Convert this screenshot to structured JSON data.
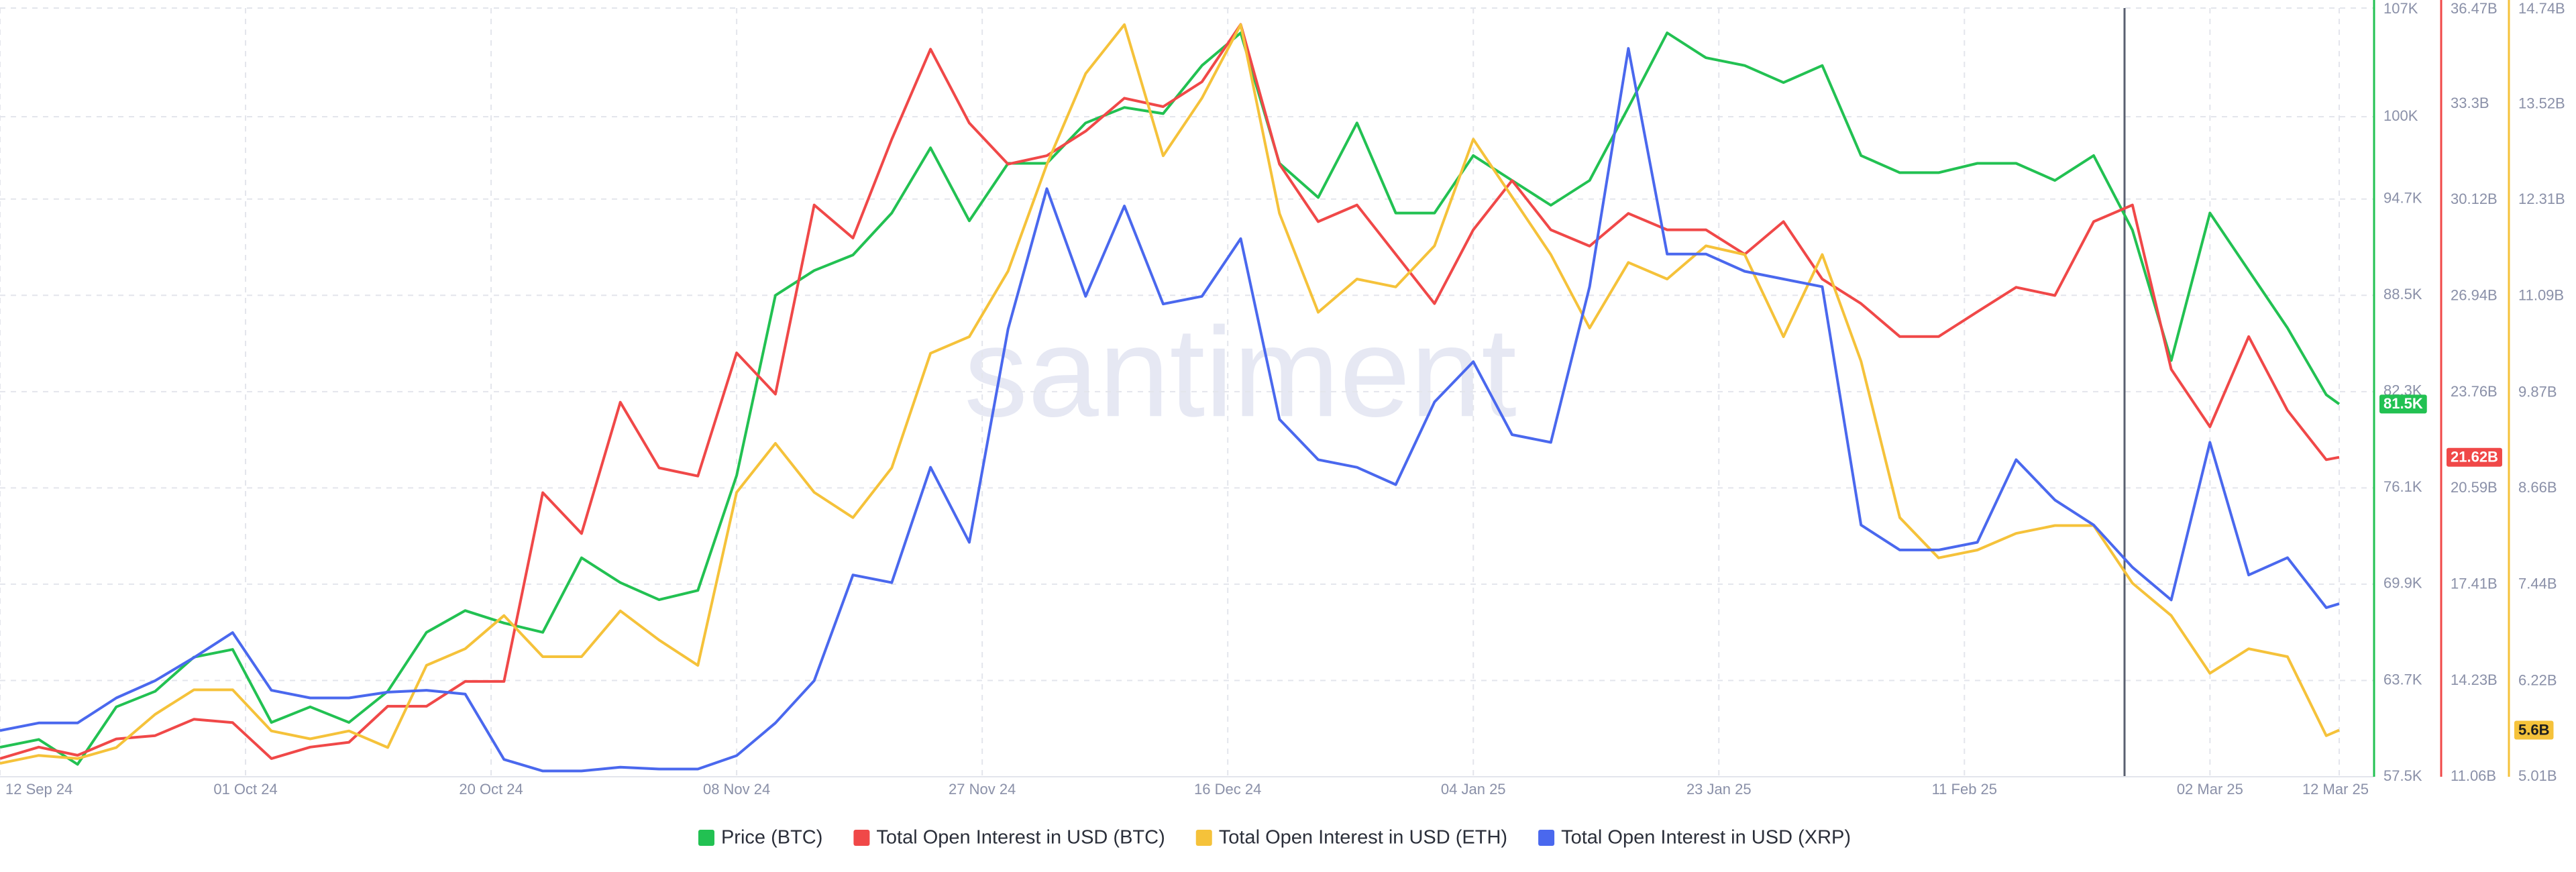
{
  "chart_data": {
    "type": "line",
    "watermark": "santiment",
    "x": [
      "12 Sep 24",
      "15 Sep 24",
      "18 Sep 24",
      "21 Sep 24",
      "24 Sep 24",
      "27 Sep 24",
      "30 Sep 24",
      "03 Oct 24",
      "06 Oct 24",
      "09 Oct 24",
      "12 Oct 24",
      "15 Oct 24",
      "18 Oct 24",
      "21 Oct 24",
      "24 Oct 24",
      "27 Oct 24",
      "30 Oct 24",
      "02 Nov 24",
      "05 Nov 24",
      "08 Nov 24",
      "11 Nov 24",
      "14 Nov 24",
      "17 Nov 24",
      "20 Nov 24",
      "23 Nov 24",
      "26 Nov 24",
      "29 Nov 24",
      "02 Dec 24",
      "05 Dec 24",
      "08 Dec 24",
      "11 Dec 24",
      "14 Dec 24",
      "17 Dec 24",
      "20 Dec 24",
      "23 Dec 24",
      "26 Dec 24",
      "29 Dec 24",
      "01 Jan 25",
      "04 Jan 25",
      "07 Jan 25",
      "10 Jan 25",
      "13 Jan 25",
      "16 Jan 25",
      "19 Jan 25",
      "22 Jan 25",
      "25 Jan 25",
      "28 Jan 25",
      "31 Jan 25",
      "03 Feb 25",
      "06 Feb 25",
      "09 Feb 25",
      "12 Feb 25",
      "15 Feb 25",
      "18 Feb 25",
      "21 Feb 25",
      "24 Feb 25",
      "27 Feb 25",
      "02 Mar 25",
      "05 Mar 25",
      "08 Mar 25",
      "11 Mar 25",
      "12 Mar 25"
    ],
    "xlim": [
      "12 Sep 24",
      "12 Mar 25"
    ],
    "xticks": [
      "12 Sep 24",
      "01 Oct 24",
      "20 Oct 24",
      "08 Nov 24",
      "27 Nov 24",
      "16 Dec 24",
      "04 Jan 25",
      "23 Jan 25",
      "11 Feb 25",
      "02 Mar 25",
      "12 Mar 25"
    ],
    "grid": true,
    "ylim": [
      57.5,
      107
    ],
    "yticks": [
      {
        "value": 57.5,
        "label": "57.5K"
      },
      {
        "value": 63.7,
        "label": "63.7K"
      },
      {
        "value": 69.9,
        "label": "69.9K"
      },
      {
        "value": 76.1,
        "label": "76.1K"
      },
      {
        "value": 82.3,
        "label": "82.3K"
      },
      {
        "value": 88.5,
        "label": "88.5K"
      },
      {
        "value": 94.7,
        "label": "94.7K"
      },
      {
        "value": 100,
        "label": "100K"
      },
      {
        "value": 107,
        "label": "107K"
      }
    ],
    "y2lim": [
      11.06,
      36.47
    ],
    "y2ticks": [
      {
        "value": 11.06,
        "label": "11.06B"
      },
      {
        "value": 14.23,
        "label": "14.23B"
      },
      {
        "value": 17.41,
        "label": "17.41B"
      },
      {
        "value": 20.59,
        "label": "20.59B"
      },
      {
        "value": 23.76,
        "label": "23.76B"
      },
      {
        "value": 26.94,
        "label": "26.94B"
      },
      {
        "value": 30.12,
        "label": "30.12B"
      },
      {
        "value": 33.3,
        "label": "33.3B"
      },
      {
        "value": 36.47,
        "label": "36.47B"
      }
    ],
    "y3lim": [
      5.01,
      14.74
    ],
    "y3ticks": [
      {
        "value": 5.01,
        "label": "5.01B"
      },
      {
        "value": 6.22,
        "label": "6.22B"
      },
      {
        "value": 7.44,
        "label": "7.44B"
      },
      {
        "value": 8.66,
        "label": "8.66B"
      },
      {
        "value": 9.87,
        "label": "9.87B"
      },
      {
        "value": 11.09,
        "label": "11.09B"
      },
      {
        "value": 12.31,
        "label": "12.31B"
      },
      {
        "value": 13.52,
        "label": "13.52B"
      },
      {
        "value": 14.74,
        "label": "14.74B"
      }
    ],
    "y4lim": [
      0.4,
      4.4
    ],
    "series": [
      {
        "name": "Price (BTC)",
        "color": "#22c152",
        "axis": "y",
        "last_label": "81.5K",
        "values": [
          59.4,
          59.9,
          58.3,
          62.0,
          63.0,
          65.2,
          65.7,
          61.0,
          62.0,
          61.0,
          63.0,
          66.8,
          68.2,
          67.4,
          66.8,
          71.6,
          70.0,
          68.9,
          69.5,
          76.9,
          88.5,
          90.1,
          91.1,
          93.8,
          98.0,
          93.3,
          97.0,
          97.0,
          99.6,
          100.6,
          100.2,
          103.3,
          105.4,
          97.0,
          94.8,
          99.6,
          93.8,
          93.8,
          97.5,
          95.9,
          94.3,
          95.9,
          100.6,
          105.4,
          103.8,
          103.3,
          102.2,
          103.3,
          97.5,
          96.4,
          96.4,
          97.0,
          97.0,
          95.9,
          97.5,
          92.7,
          84.3,
          93.8,
          90.1,
          86.4,
          82.1,
          81.5
        ]
      },
      {
        "name": "Total Open Interest in USD (BTC)",
        "color": "#f04848",
        "axis": "y2",
        "last_label": "21.62B",
        "values": [
          11.66,
          12.04,
          11.77,
          12.31,
          12.42,
          12.96,
          12.85,
          11.66,
          12.04,
          12.2,
          13.39,
          13.39,
          14.21,
          14.21,
          20.45,
          19.1,
          23.44,
          21.27,
          21.0,
          25.07,
          23.71,
          29.96,
          28.87,
          32.13,
          35.11,
          32.67,
          31.31,
          31.59,
          32.4,
          33.49,
          33.21,
          34.03,
          35.93,
          31.31,
          29.41,
          29.96,
          28.33,
          26.7,
          29.14,
          30.77,
          29.14,
          28.6,
          29.68,
          29.14,
          29.14,
          28.33,
          29.41,
          27.51,
          26.7,
          25.61,
          25.61,
          26.43,
          27.24,
          26.97,
          29.41,
          29.96,
          24.53,
          22.63,
          25.61,
          23.17,
          21.54,
          21.62
        ]
      },
      {
        "name": "Total Open Interest in USD (ETH)",
        "color": "#f5c23a",
        "axis": "y3",
        "last_label": "5.6B",
        "values": [
          5.18,
          5.28,
          5.24,
          5.38,
          5.8,
          6.11,
          6.11,
          5.59,
          5.49,
          5.59,
          5.38,
          6.42,
          6.63,
          7.05,
          6.53,
          6.53,
          7.11,
          6.74,
          6.42,
          8.61,
          9.23,
          8.61,
          8.29,
          8.92,
          10.37,
          10.58,
          11.41,
          12.76,
          13.91,
          14.53,
          12.87,
          13.6,
          14.53,
          12.14,
          10.89,
          11.31,
          11.21,
          11.73,
          13.08,
          12.35,
          11.62,
          10.69,
          11.52,
          11.31,
          11.73,
          11.62,
          10.58,
          11.62,
          10.27,
          8.29,
          7.78,
          7.88,
          8.09,
          8.19,
          8.19,
          7.46,
          7.05,
          6.32,
          6.63,
          6.53,
          5.53,
          5.6
        ]
      },
      {
        "name": "Total Open Interest in USD (XRP)",
        "color": "#4a68ee",
        "axis": "y4",
        "values": [
          0.64,
          0.68,
          0.68,
          0.81,
          0.9,
          1.02,
          1.15,
          0.85,
          0.81,
          0.81,
          0.84,
          0.85,
          0.83,
          0.49,
          0.43,
          0.43,
          0.45,
          0.44,
          0.44,
          0.51,
          0.68,
          0.9,
          1.45,
          1.41,
          2.01,
          1.62,
          2.73,
          3.46,
          2.9,
          3.37,
          2.86,
          2.9,
          3.2,
          2.26,
          2.05,
          2.01,
          1.92,
          2.35,
          2.56,
          2.18,
          2.14,
          2.95,
          4.19,
          3.12,
          3.12,
          3.03,
          2.99,
          2.95,
          1.71,
          1.58,
          1.58,
          1.62,
          2.05,
          1.84,
          1.71,
          1.49,
          1.32,
          2.14,
          1.45,
          1.54,
          1.28,
          1.3
        ]
      }
    ]
  }
}
